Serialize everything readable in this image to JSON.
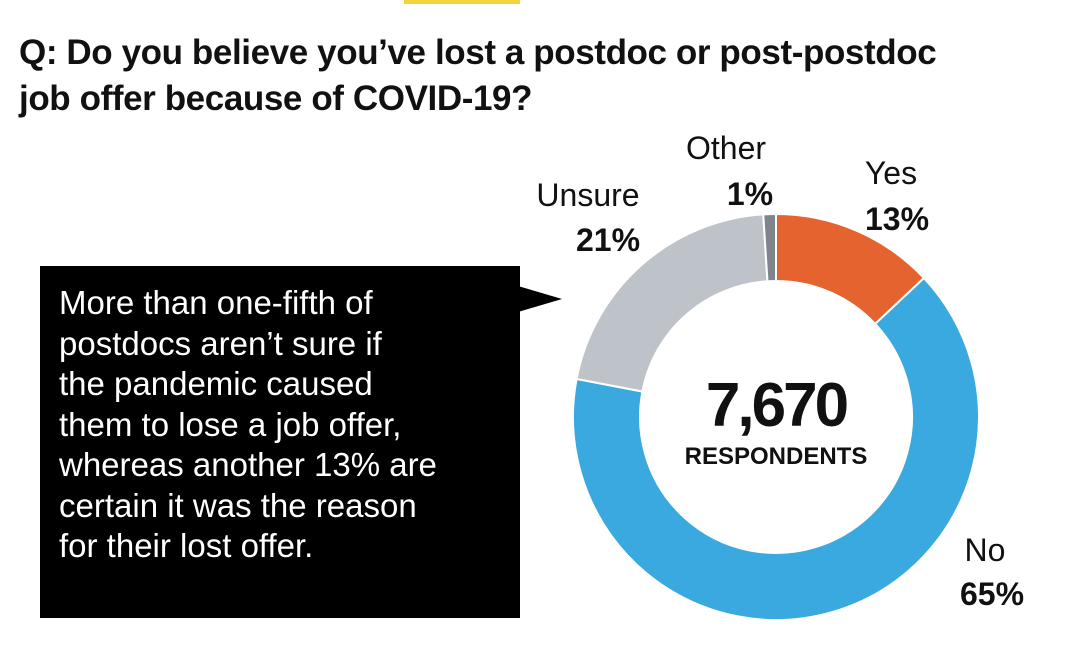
{
  "title_lines": [
    "Q: Do you believe you’ve lost a postdoc or post-postdoc",
    "job offer because of COVID-19?"
  ],
  "callout": "More than one-fifth of\npostdocs aren’t sure if\nthe pandemic caused\nthem to lose a job offer,\nwhereas another 13% are\ncertain it was the reason\nfor their lost offer.",
  "center_total": "7,670",
  "center_label": "RESPONDENTS",
  "colors": {
    "yes": "#e5632e",
    "no": "#3aa9e0",
    "unsure": "#bec3c9",
    "other": "#7e858d",
    "accent": "#f5d33a"
  },
  "chart_data": {
    "type": "pie",
    "donut": true,
    "title": "Q: Do you believe you’ve lost a postdoc or post-postdoc job offer because of COVID-19?",
    "total": "7,670",
    "total_label": "RESPONDENTS",
    "slices": [
      {
        "label": "Yes",
        "value": 13,
        "value_label": "13%",
        "color": "#e5632e"
      },
      {
        "label": "No",
        "value": 65,
        "value_label": "65%",
        "color": "#3aa9e0"
      },
      {
        "label": "Unsure",
        "value": 21,
        "value_label": "21%",
        "color": "#bec3c9"
      },
      {
        "label": "Other",
        "value": 1,
        "value_label": "1%",
        "color": "#7e858d"
      }
    ]
  }
}
